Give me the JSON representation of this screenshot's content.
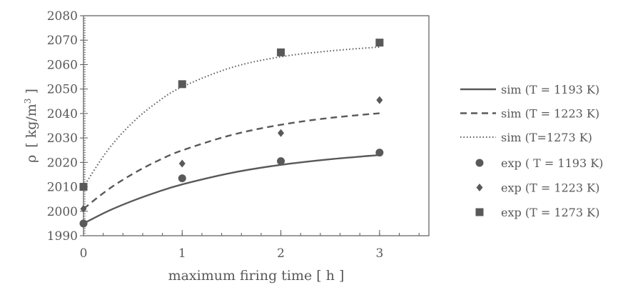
{
  "chart_data": {
    "type": "scatter",
    "title": "",
    "xlabel": "maximum firing time  [ h ]",
    "ylabel_symbol": "ρ",
    "ylabel_unit": "[ kg/m",
    "ylabel_sup": "3",
    "ylabel_close": " ]",
    "xlim": [
      0,
      3.5
    ],
    "ylim": [
      1990,
      2080
    ],
    "xticks": [
      "0",
      "1",
      "2",
      "3"
    ],
    "xtick_values": [
      0,
      1,
      2,
      3
    ],
    "yticks": [
      "1990",
      "2000",
      "2010",
      "2020",
      "2030",
      "2040",
      "2050",
      "2060",
      "2070",
      "2080"
    ],
    "ytick_values": [
      1990,
      2000,
      2010,
      2020,
      2030,
      2040,
      2050,
      2060,
      2070,
      2080
    ],
    "grid": false,
    "legend_position": "right",
    "color": "#595959",
    "lines": [
      {
        "name": "sim (T = 1193 K)",
        "style": "solid",
        "x": [
          0,
          0.25,
          0.5,
          0.75,
          1,
          1.5,
          2,
          2.5,
          3
        ],
        "y": [
          1995,
          2000.1,
          2004.3,
          2007.9,
          2011,
          2015.7,
          2019,
          2021.3,
          2023
        ]
      },
      {
        "name": "sim (T = 1223 K)",
        "style": "dashed",
        "x": [
          0,
          0.25,
          0.5,
          0.75,
          1,
          1.5,
          2,
          2.5,
          3
        ],
        "y": [
          2001,
          2008.9,
          2015.3,
          2020.6,
          2024.9,
          2031.2,
          2035.4,
          2038.2,
          2040.1
        ]
      },
      {
        "name": "sim (T=1273 K)",
        "style": "dotted",
        "x": [
          0,
          0.25,
          0.5,
          0.75,
          1,
          1.5,
          2,
          2.5,
          3
        ],
        "y": [
          2010,
          2025.2,
          2036.4,
          2044.7,
          2050.9,
          2058.8,
          2063.2,
          2065.6,
          2067.2
        ]
      }
    ],
    "points": [
      {
        "name": "exp ( T = 1193 K)",
        "marker": "circle",
        "x": [
          0,
          1,
          2,
          3
        ],
        "y": [
          1995,
          2013.5,
          2020.5,
          2024
        ]
      },
      {
        "name": "exp (T = 1223 K)",
        "marker": "diamond",
        "x": [
          0,
          1,
          2,
          3
        ],
        "y": [
          2001,
          2019.5,
          2032,
          2045.5
        ]
      },
      {
        "name": "exp (T = 1273 K)",
        "marker": "square",
        "x": [
          0,
          1,
          2,
          3
        ],
        "y": [
          2010,
          2052,
          2065,
          2069
        ]
      }
    ]
  }
}
